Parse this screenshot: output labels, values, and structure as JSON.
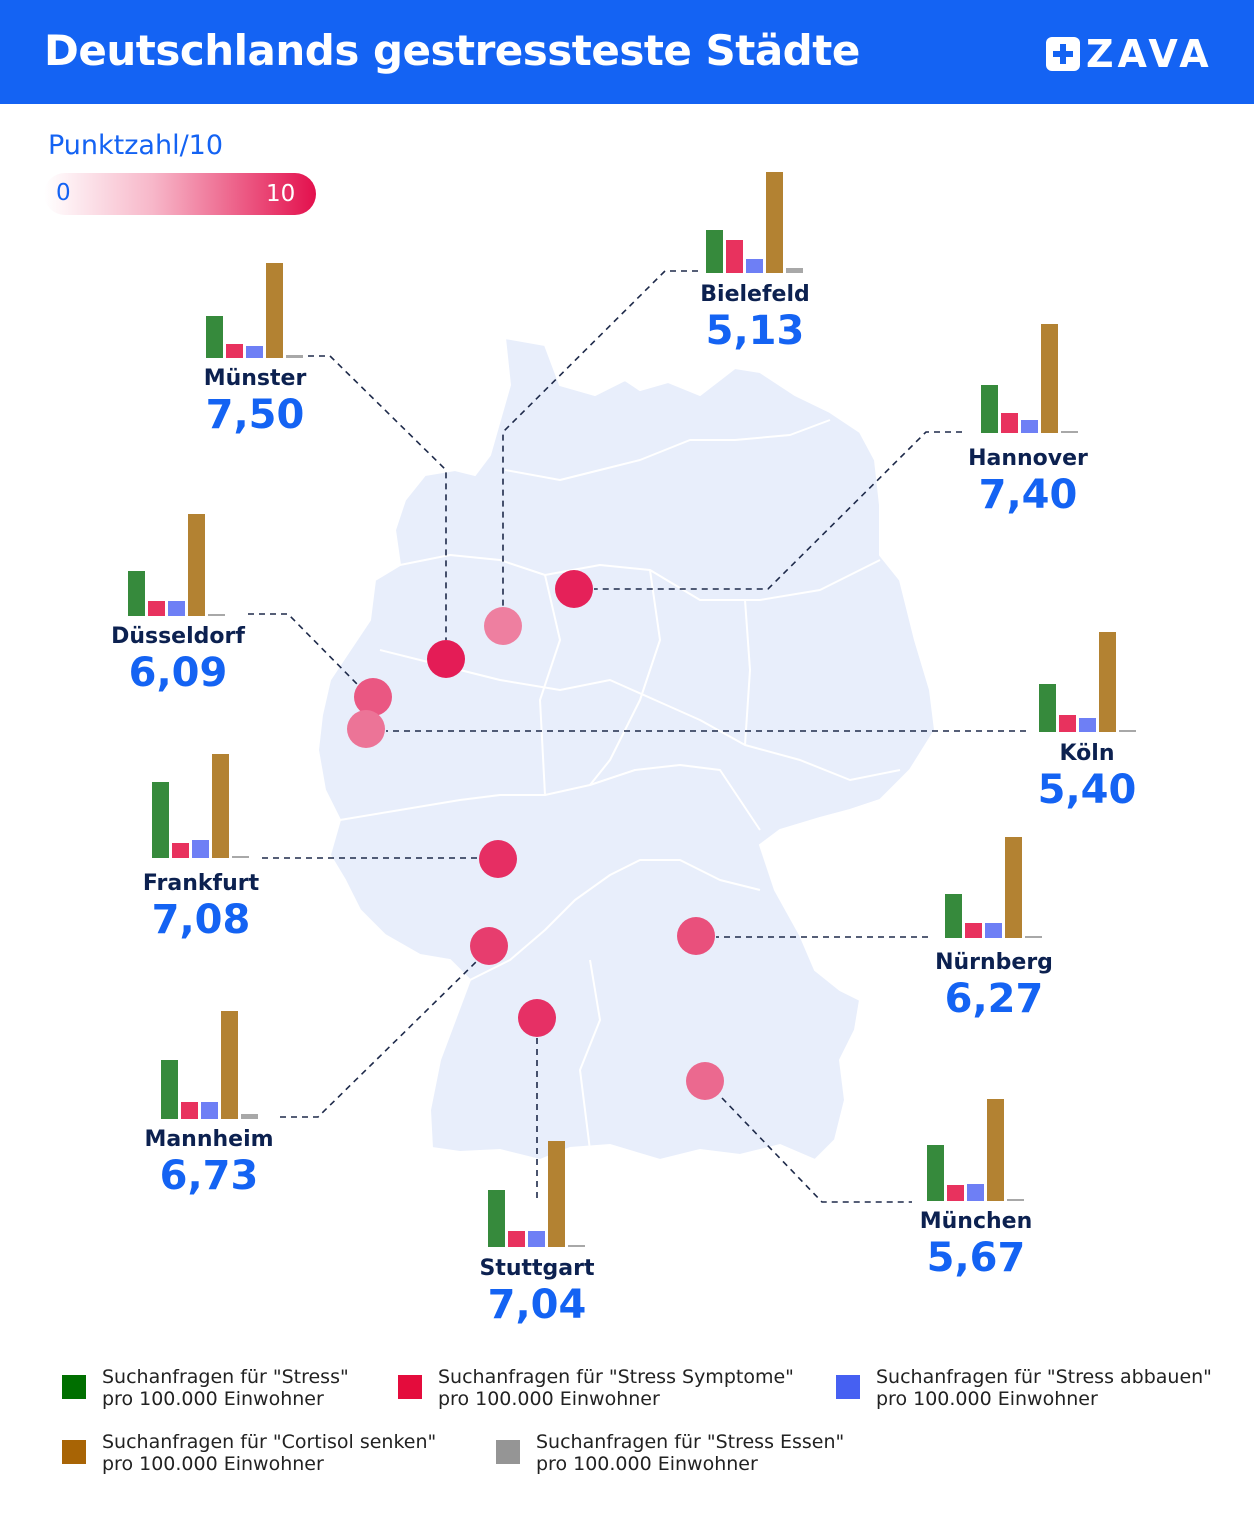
{
  "header": {
    "title": "Deutschlands gestressteste Städte",
    "logo_text": "ZAVA",
    "logo_icon": "plus-cross-icon",
    "background_color": "#1463f3"
  },
  "scale": {
    "title": "Punktzahl/10",
    "min_label": "0",
    "max_label": "10",
    "color_low": "#ffffff",
    "color_high": "#e3104d"
  },
  "colors": {
    "stress": "#368a3c",
    "symptome": "#e8325e",
    "abbauen": "#6e7ff5",
    "cortisol": "#b38232",
    "essen": "#a8a8a8",
    "marker": "#e3104d",
    "map_land": "#e8eefb"
  },
  "cities": [
    {
      "name": "Münster",
      "score": "7,50",
      "values": {
        "stress": 42,
        "symptome": 14,
        "abbauen": 12,
        "cortisol": 95,
        "essen": 3
      }
    },
    {
      "name": "Bielefeld",
      "score": "5,13",
      "values": {
        "stress": 43,
        "symptome": 33,
        "abbauen": 14,
        "cortisol": 101,
        "essen": 5
      }
    },
    {
      "name": "Hannover",
      "score": "7,40",
      "values": {
        "stress": 48,
        "symptome": 20,
        "abbauen": 13,
        "cortisol": 109,
        "essen": 2
      }
    },
    {
      "name": "Düsseldorf",
      "score": "6,09",
      "values": {
        "stress": 45,
        "symptome": 15,
        "abbauen": 15,
        "cortisol": 102,
        "essen": 2
      }
    },
    {
      "name": "Köln",
      "score": "5,40",
      "values": {
        "stress": 48,
        "symptome": 17,
        "abbauen": 14,
        "cortisol": 100,
        "essen": 2
      }
    },
    {
      "name": "Frankfurt",
      "score": "7,08",
      "values": {
        "stress": 76,
        "symptome": 15,
        "abbauen": 18,
        "cortisol": 104,
        "essen": 2
      }
    },
    {
      "name": "Nürnberg",
      "score": "6,27",
      "values": {
        "stress": 44,
        "symptome": 15,
        "abbauen": 15,
        "cortisol": 101,
        "essen": 2
      }
    },
    {
      "name": "Mannheim",
      "score": "6,73",
      "values": {
        "stress": 59,
        "symptome": 17,
        "abbauen": 17,
        "cortisol": 108,
        "essen": 5
      }
    },
    {
      "name": "Stuttgart",
      "score": "7,04",
      "values": {
        "stress": 57,
        "symptome": 16,
        "abbauen": 16,
        "cortisol": 106,
        "essen": 2
      }
    },
    {
      "name": "München",
      "score": "5,67",
      "values": {
        "stress": 56,
        "symptome": 16,
        "abbauen": 17,
        "cortisol": 102,
        "essen": 2
      }
    }
  ],
  "legend": [
    {
      "key": "stress",
      "line1": "Suchanfragen für \"Stress\"",
      "line2": "pro 100.000 Einwohner",
      "color": "#006f00"
    },
    {
      "key": "symptome",
      "line1": "Suchanfragen für \"Stress Symptome\"",
      "line2": "pro 100.000 Einwohner",
      "color": "#e40c3c"
    },
    {
      "key": "abbauen",
      "line1": "Suchanfragen für \"Stress abbauen\"",
      "line2": "pro 100.000 Einwohner",
      "color": "#4660f2"
    },
    {
      "key": "cortisol",
      "line1": "Suchanfragen für \"Cortisol senken\"",
      "line2": "pro 100.000 Einwohner",
      "color": "#a86405"
    },
    {
      "key": "essen",
      "line1": "Suchanfragen für \"Stress Essen\"",
      "line2": "pro 100.000 Einwohner",
      "color": "#959595"
    }
  ]
}
